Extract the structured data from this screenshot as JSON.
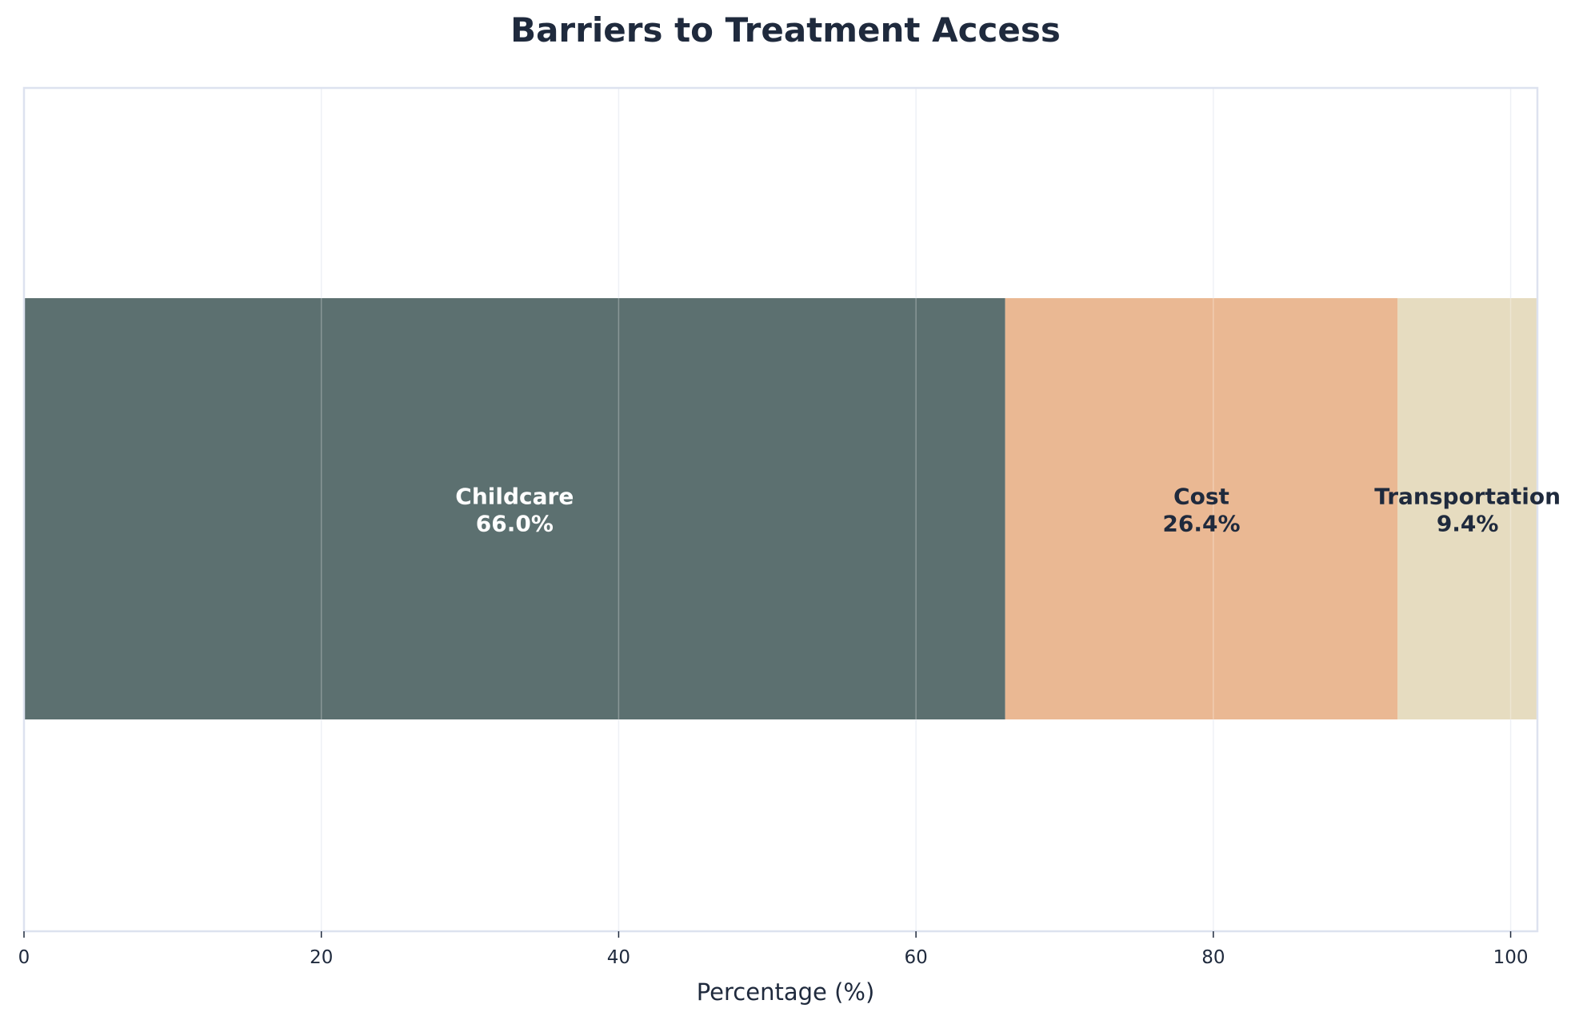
{
  "chart_data": {
    "type": "bar",
    "orientation": "horizontal-stacked",
    "title": "Barriers to Treatment Access",
    "xlabel": "Percentage (%)",
    "ylabel": "",
    "xlim": [
      0,
      101.8
    ],
    "xticks": [
      0,
      20,
      40,
      60,
      80,
      100
    ],
    "grid": true,
    "legend": "none",
    "series": [
      {
        "name": "Childcare",
        "value": 66.0,
        "label": "66.0%",
        "color": "#5c7070",
        "text_color": "#ffffff"
      },
      {
        "name": "Cost",
        "value": 26.4,
        "label": "26.4%",
        "color": "#eab893",
        "text_color": "#1f2a3d"
      },
      {
        "name": "Transportation",
        "value": 9.4,
        "label": "9.4%",
        "color": "#e6dcc0",
        "text_color": "#1f2a3d"
      }
    ],
    "colors": {
      "text": "#1f2a3d",
      "spine": "#dde2ef",
      "grid": "#eef1f6"
    }
  }
}
